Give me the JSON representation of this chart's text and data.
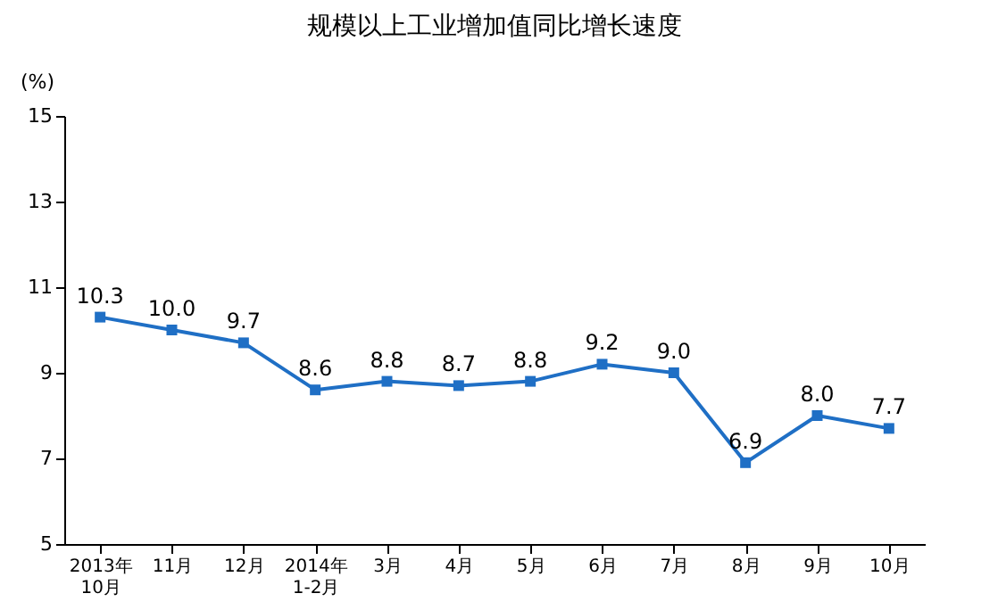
{
  "chart_data": {
    "type": "line",
    "title": "规模以上工业增加值同比增长速度",
    "ylabel": "(%)",
    "categories": [
      "2013年\n10月",
      "11月",
      "12月",
      "2014年\n1-2月",
      "3月",
      "4月",
      "5月",
      "6月",
      "7月",
      "8月",
      "9月",
      "10月"
    ],
    "series": [
      {
        "color": "#1f6fc5",
        "values": [
          10.3,
          10.0,
          9.7,
          8.6,
          8.8,
          8.7,
          8.8,
          9.2,
          9.0,
          6.9,
          8.0,
          7.7
        ],
        "value_labels": [
          "10.3",
          "10.0",
          "9.7",
          "8.6",
          "8.8",
          "8.7",
          "8.8",
          "9.2",
          "9.0",
          "6.9",
          "8.0",
          "7.7"
        ]
      }
    ],
    "ylim": [
      5,
      15
    ],
    "yticks": [
      5,
      7,
      9,
      11,
      13,
      15
    ],
    "grid": false,
    "marker": "square",
    "line_style": "solid"
  }
}
